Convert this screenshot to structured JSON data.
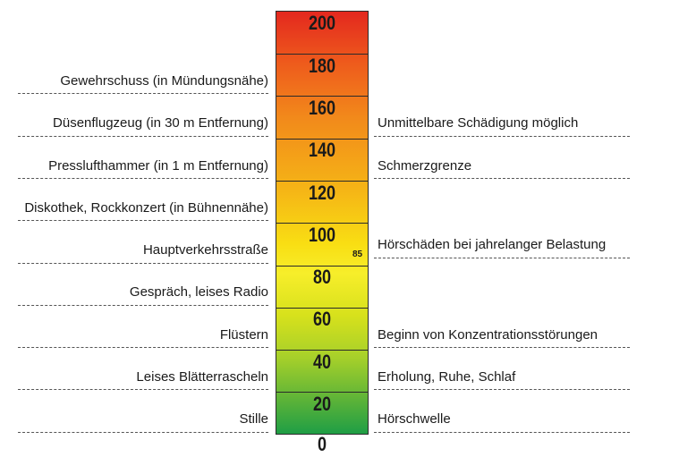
{
  "scale": {
    "ticks": [
      "200",
      "180",
      "160",
      "140",
      "120",
      "100",
      "80",
      "60",
      "40",
      "20"
    ],
    "zero": "0",
    "marker": "85"
  },
  "left_labels": [
    "Gewehrschuss (in Mündungsnähe)",
    "Düsenflugzeug (in 30 m Entfernung)",
    "Presslufthammer (in 1 m Entfernung)",
    "Diskothek, Rockkonzert (in Bühnennähe)",
    "Hauptverkehrsstraße",
    "Gespräch, leises Radio",
    "Flüstern",
    "Leises Blätterrascheln",
    "Stille"
  ],
  "right_labels": [
    "Unmittelbare Schädigung möglich",
    "Schmerzgrenze",
    "Hörschäden bei jahrelanger Belastung",
    "Beginn von Konzentrationsstörungen",
    "Erholung, Ruhe, Schlaf",
    "Hörschwelle"
  ],
  "colors": {
    "top": "#e3281f",
    "upper_middle": "#f2891b",
    "middle": "#f9de13",
    "lower_middle": "#a6d02a",
    "bottom": "#1f9e45"
  }
}
